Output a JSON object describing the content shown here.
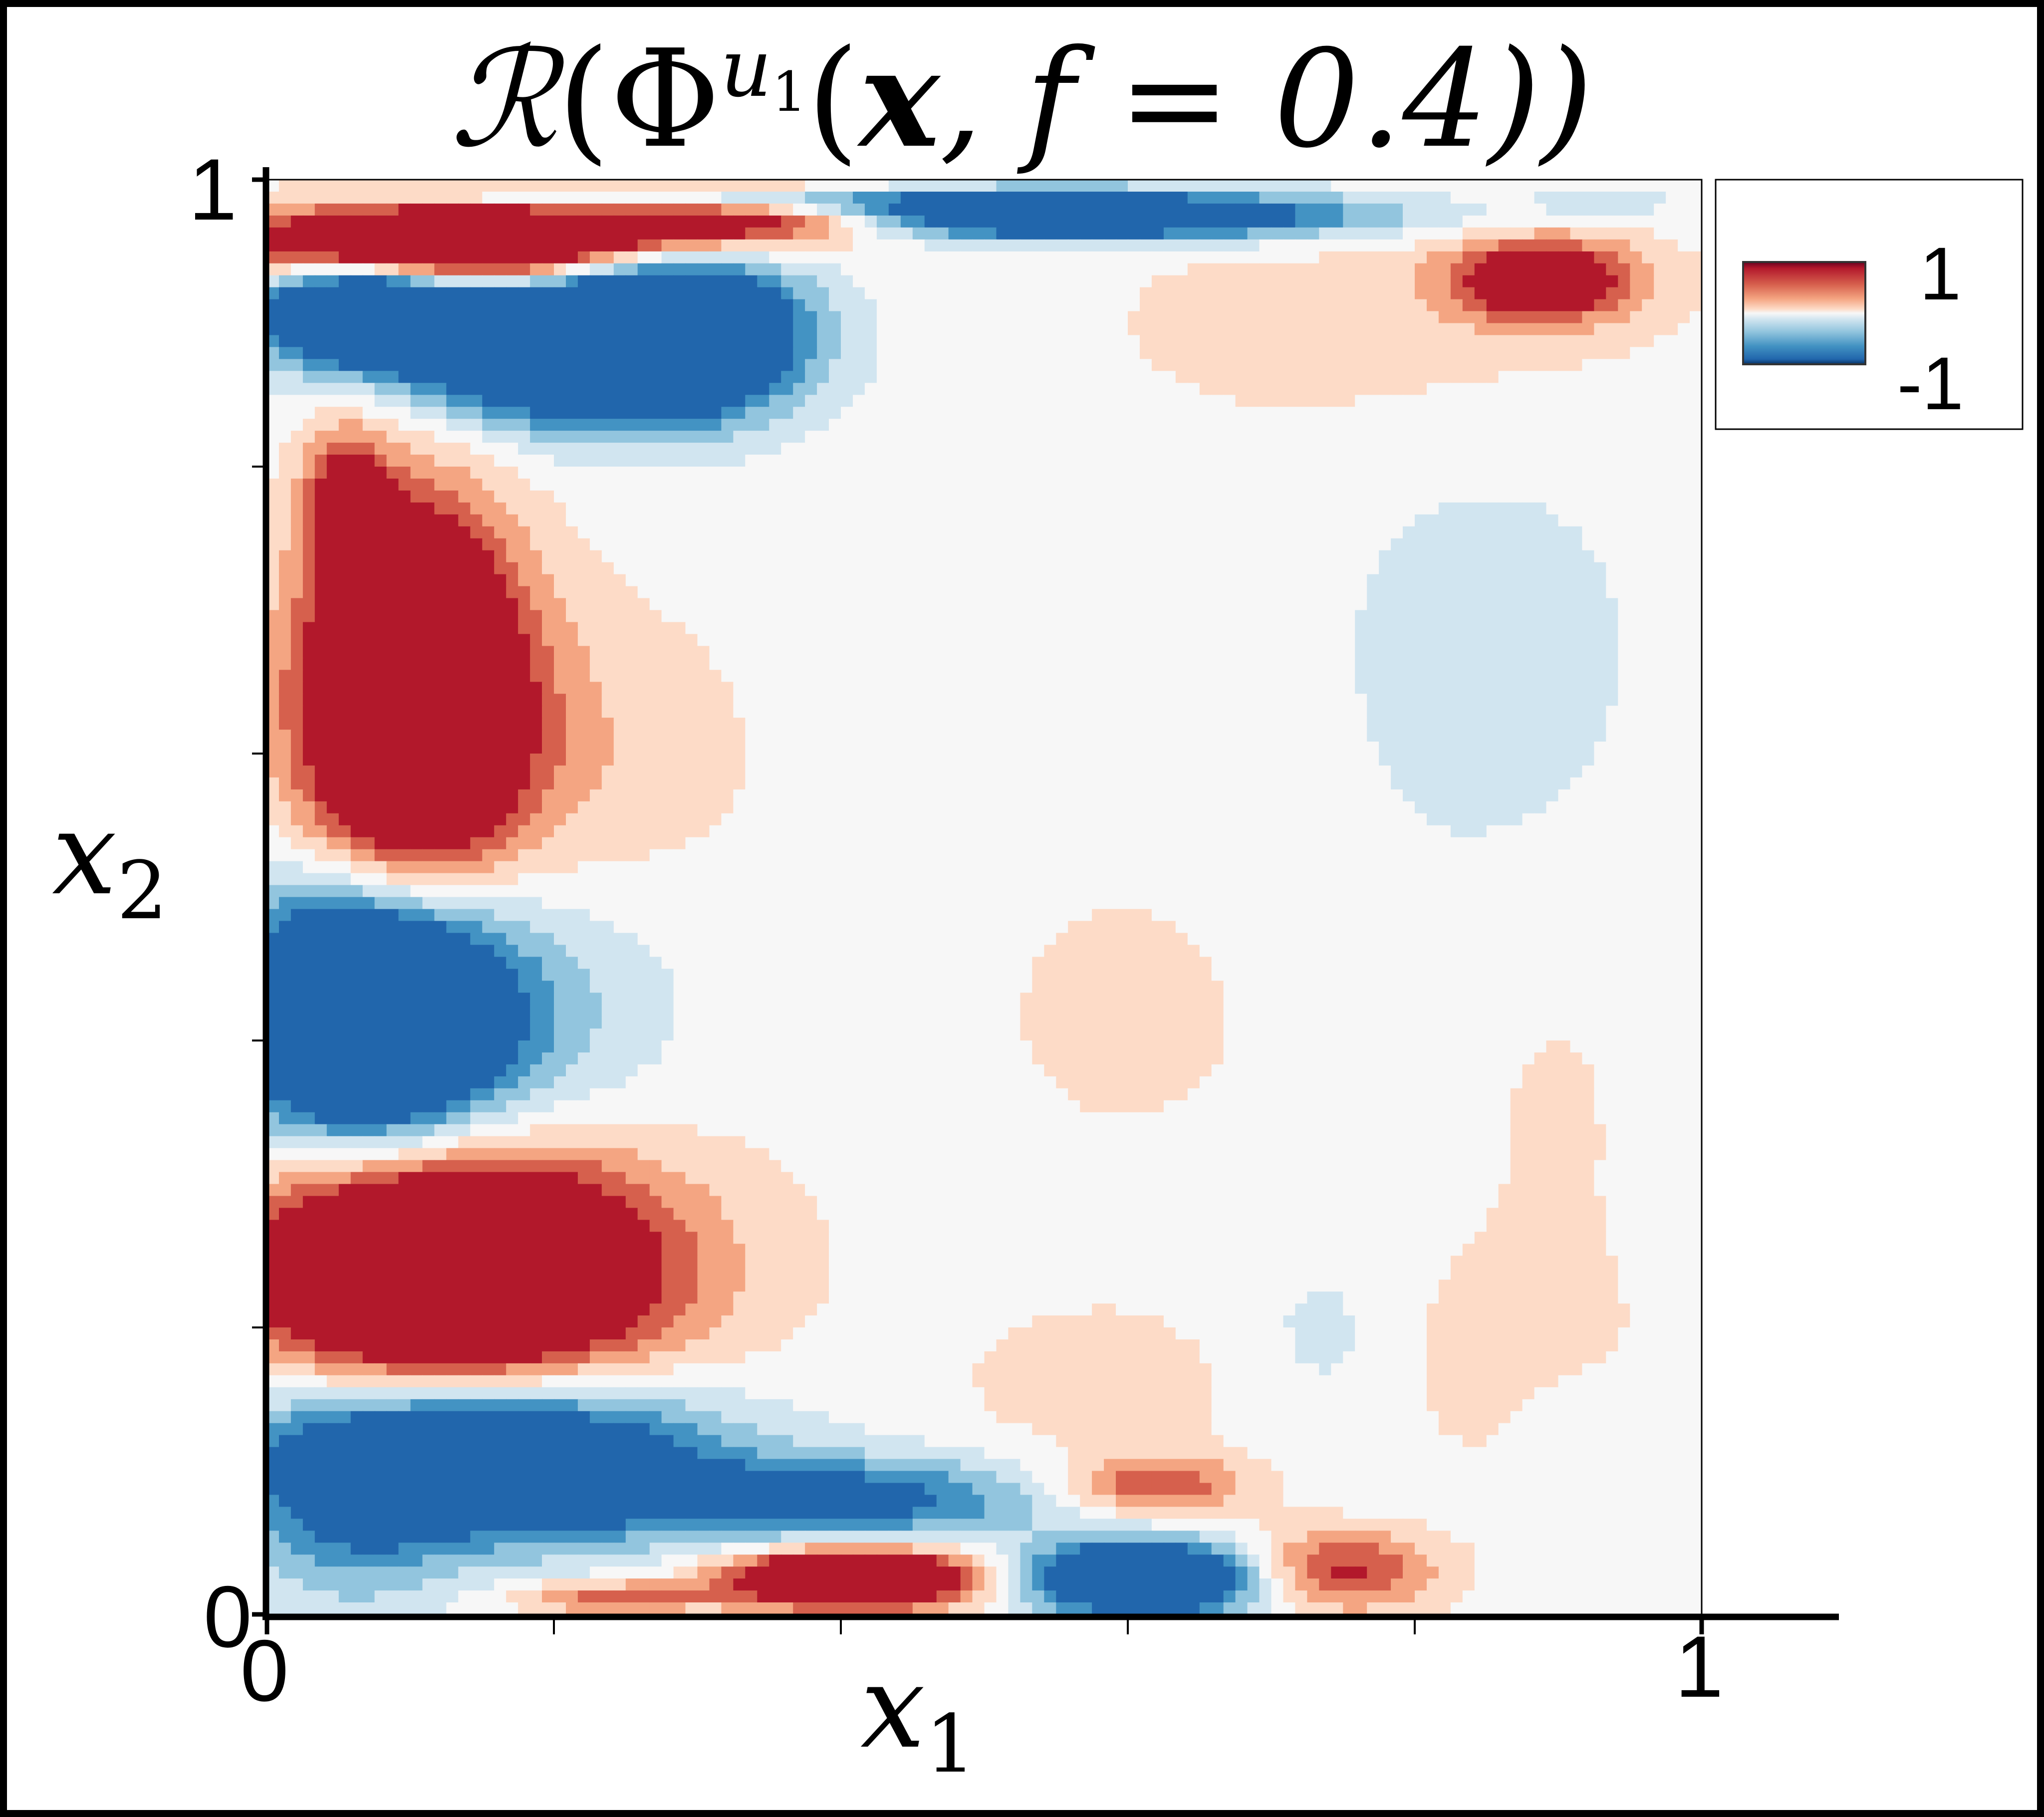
{
  "chart_data": {
    "type": "heatmap",
    "title": "ℛ(Φᵘ¹(x, f = 0.4))",
    "title_parts": {
      "operator": "ℛ",
      "open": "(",
      "phi": "Φ",
      "sup_base": "u",
      "sup_sub": "1",
      "args_open": "(",
      "x": "x",
      "rest": ", f = 0.4))"
    },
    "xlabel": {
      "base": "x",
      "sub": "1"
    },
    "ylabel": {
      "base": "x",
      "sub": "2"
    },
    "xlim": [
      0,
      1
    ],
    "ylim": [
      0,
      1
    ],
    "x_tick_labels": [
      "0",
      "1"
    ],
    "y_tick_labels": [
      "0",
      "1"
    ],
    "x_minor_ticks": [
      0.2,
      0.4,
      0.6,
      0.8
    ],
    "y_minor_ticks": [
      0.2,
      0.4,
      0.6,
      0.8
    ],
    "colorbar": {
      "max_label": "1",
      "min_label": "-1",
      "min": -1,
      "max": 1,
      "placement": "top-right"
    },
    "colormap": [
      "#2166ac",
      "#4393c3",
      "#92c5de",
      "#d1e5f0",
      "#f7f7f7",
      "#fddbc7",
      "#f4a582",
      "#d6604d",
      "#b2182b"
    ],
    "features": [
      {
        "x": 0.28,
        "y": 0.985,
        "sx": 0.13,
        "sy": 0.006,
        "amp": -1.3
      },
      {
        "x": 0.13,
        "y": 0.955,
        "sx": 0.1,
        "sy": 0.02,
        "amp": 2.6
      },
      {
        "x": 0.32,
        "y": 0.975,
        "sx": 0.09,
        "sy": 0.014,
        "amp": 2.0
      },
      {
        "x": 0.55,
        "y": 0.975,
        "sx": 0.15,
        "sy": 0.012,
        "amp": -1.9
      },
      {
        "x": 0.93,
        "y": 0.985,
        "sx": 0.03,
        "sy": 0.007,
        "amp": -0.4
      },
      {
        "x": 0.065,
        "y": 0.91,
        "sx": 0.05,
        "sy": 0.025,
        "amp": -2.2
      },
      {
        "x": 0.2,
        "y": 0.885,
        "sx": 0.08,
        "sy": 0.035,
        "amp": -2.1
      },
      {
        "x": 0.285,
        "y": 0.895,
        "sx": 0.06,
        "sy": 0.04,
        "amp": -1.8
      },
      {
        "x": 0.89,
        "y": 0.93,
        "sx": 0.045,
        "sy": 0.02,
        "amp": 1.4
      },
      {
        "x": 0.78,
        "y": 0.9,
        "sx": 0.15,
        "sy": 0.06,
        "amp": 0.25
      },
      {
        "x": 0.055,
        "y": 0.78,
        "sx": 0.02,
        "sy": 0.035,
        "amp": 0.9
      },
      {
        "x": 0.1,
        "y": 0.64,
        "sx": 0.05,
        "sy": 0.09,
        "amp": 2.6
      },
      {
        "x": 0.18,
        "y": 0.6,
        "sx": 0.1,
        "sy": 0.08,
        "amp": 0.4
      },
      {
        "x": 0.85,
        "y": 0.66,
        "sx": 0.08,
        "sy": 0.12,
        "amp": -0.25
      },
      {
        "x": 0.07,
        "y": 0.42,
        "sx": 0.06,
        "sy": 0.06,
        "amp": -2.5
      },
      {
        "x": 0.14,
        "y": 0.42,
        "sx": 0.09,
        "sy": 0.07,
        "amp": -0.6
      },
      {
        "x": 0.12,
        "y": 0.24,
        "sx": 0.09,
        "sy": 0.055,
        "amp": 2.6
      },
      {
        "x": 0.22,
        "y": 0.24,
        "sx": 0.1,
        "sy": 0.07,
        "amp": 0.4
      },
      {
        "x": 0.15,
        "y": 0.11,
        "sx": 0.11,
        "sy": 0.04,
        "amp": -2.0
      },
      {
        "x": 0.4,
        "y": 0.08,
        "sx": 0.1,
        "sy": 0.02,
        "amp": -1.1
      },
      {
        "x": 0.06,
        "y": 0.06,
        "sx": 0.05,
        "sy": 0.05,
        "amp": -0.5
      },
      {
        "x": 0.41,
        "y": 0.025,
        "sx": 0.06,
        "sy": 0.014,
        "amp": 2.4
      },
      {
        "x": 0.24,
        "y": 0.012,
        "sx": 0.05,
        "sy": 0.008,
        "amp": 0.8
      },
      {
        "x": 0.615,
        "y": 0.025,
        "sx": 0.06,
        "sy": 0.018,
        "amp": -2.2
      },
      {
        "x": 0.74,
        "y": 0.03,
        "sx": 0.05,
        "sy": 0.02,
        "amp": 1.1
      },
      {
        "x": 0.62,
        "y": 0.09,
        "sx": 0.045,
        "sy": 0.015,
        "amp": 0.9
      },
      {
        "x": 0.59,
        "y": 0.16,
        "sx": 0.07,
        "sy": 0.035,
        "amp": 0.3
      },
      {
        "x": 0.75,
        "y": 0.19,
        "sx": 0.06,
        "sy": 0.05,
        "amp": -0.25
      },
      {
        "x": 0.85,
        "y": 0.18,
        "sx": 0.06,
        "sy": 0.05,
        "amp": 0.35
      },
      {
        "x": 0.9,
        "y": 0.14,
        "sx": 0.03,
        "sy": 0.03,
        "amp": -0.2
      },
      {
        "x": 0.6,
        "y": 0.42,
        "sx": 0.12,
        "sy": 0.12,
        "amp": 0.15
      },
      {
        "x": 0.9,
        "y": 0.35,
        "sx": 0.05,
        "sy": 0.12,
        "amp": 0.15
      }
    ]
  }
}
